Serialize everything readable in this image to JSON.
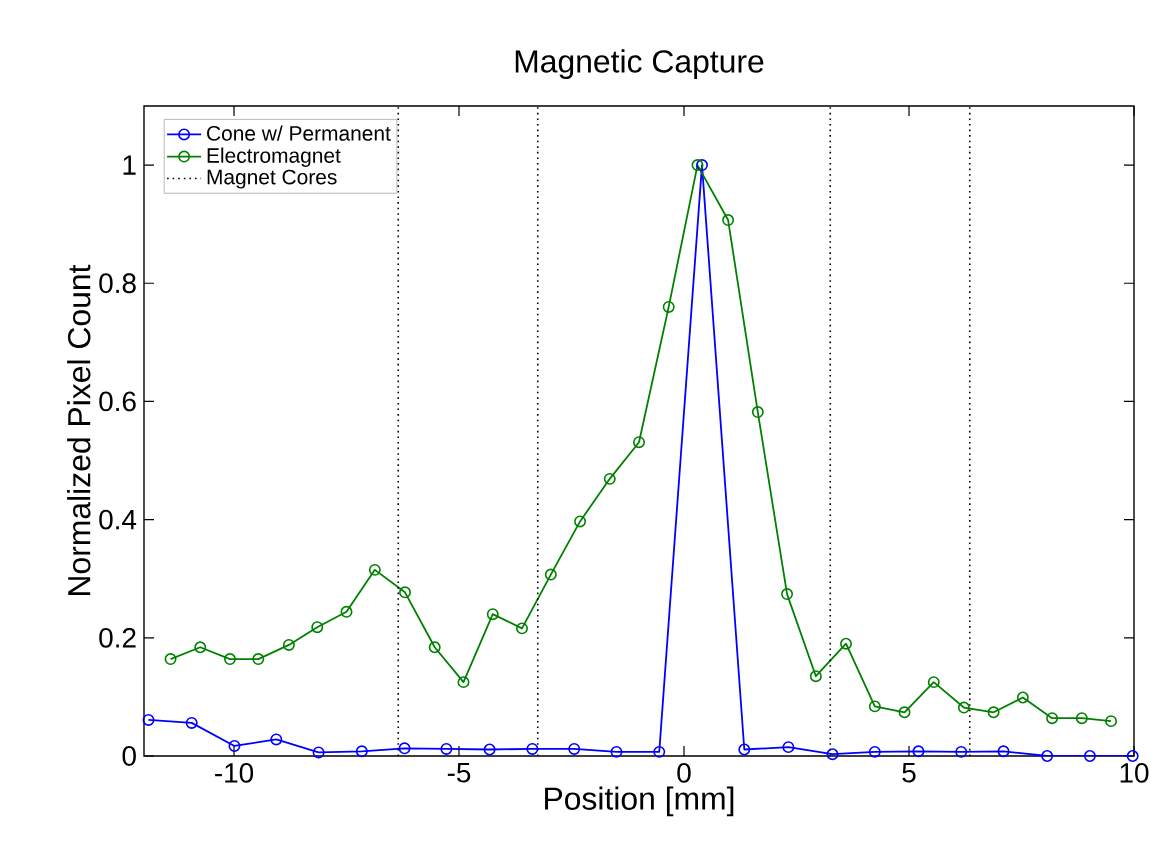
{
  "chart_data": {
    "type": "line",
    "title": "Magnetic Capture",
    "xlabel": "Position [mm]",
    "ylabel": "Normalized Pixel Count",
    "xlim": [
      -12,
      10
    ],
    "ylim": [
      0,
      1.1
    ],
    "xticks": [
      -10,
      -5,
      0,
      5,
      10
    ],
    "yticks": [
      0,
      0.2,
      0.4,
      0.6,
      0.8,
      1
    ],
    "grid": false,
    "legend": "top left",
    "marker": "circle",
    "series": [
      {
        "name": "Cone w/ Permanent",
        "color": "#0000ff",
        "x": [
          -11.9,
          -10.94,
          -9.99,
          -9.06,
          -8.12,
          -7.16,
          -6.21,
          -5.28,
          -4.32,
          -3.37,
          -2.44,
          -1.5,
          -0.55,
          0.4,
          1.34,
          2.32,
          3.3,
          4.24,
          5.21,
          6.16,
          7.1,
          8.07,
          9.02,
          9.97
        ],
        "values": [
          0.061,
          0.056,
          0.017,
          0.028,
          0.006,
          0.008,
          0.013,
          0.012,
          0.011,
          0.012,
          0.012,
          0.007,
          0.007,
          1.0,
          0.011,
          0.015,
          0.003,
          0.007,
          0.008,
          0.007,
          0.008,
          0.0,
          0.0,
          0.0
        ]
      },
      {
        "name": "Electromagnet",
        "color": "#008000",
        "x": [
          -11.41,
          -10.75,
          -10.09,
          -9.46,
          -8.78,
          -8.15,
          -7.5,
          -6.87,
          -6.2,
          -5.54,
          -4.9,
          -4.25,
          -3.6,
          -2.96,
          -2.31,
          -1.65,
          -1.0,
          -0.34,
          0.3,
          0.98,
          1.64,
          2.29,
          2.93,
          3.6,
          4.24,
          4.9,
          5.55,
          6.22,
          6.88,
          7.53,
          8.18,
          8.84,
          9.49
        ],
        "values": [
          0.164,
          0.184,
          0.164,
          0.164,
          0.188,
          0.218,
          0.244,
          0.315,
          0.277,
          0.184,
          0.125,
          0.24,
          0.216,
          0.307,
          0.397,
          0.469,
          0.531,
          0.76,
          1.0,
          0.907,
          0.582,
          0.274,
          0.135,
          0.19,
          0.084,
          0.074,
          0.125,
          0.082,
          0.074,
          0.099,
          0.064,
          0.064,
          0.059
        ]
      }
    ],
    "ref_lines": [
      {
        "axis": "x",
        "value": -6.35,
        "label": "Magnet Cores",
        "color": "#000000",
        "line_style": "dotted"
      },
      {
        "axis": "x",
        "value": -3.25,
        "color": "#000000",
        "line_style": "dotted"
      },
      {
        "axis": "x",
        "value": 3.25,
        "color": "#000000",
        "line_style": "dotted"
      },
      {
        "axis": "x",
        "value": 6.35,
        "color": "#000000",
        "line_style": "dotted"
      }
    ]
  }
}
